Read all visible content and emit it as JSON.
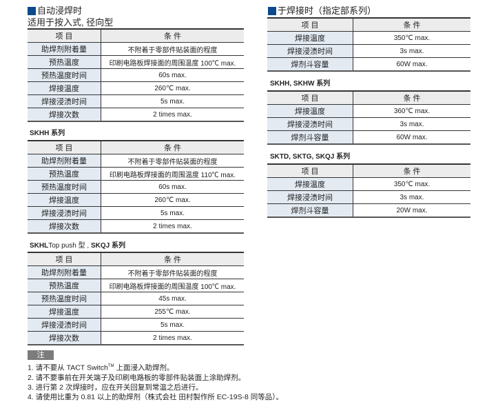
{
  "left": {
    "title": "自动浸焊时",
    "subtitle": "适用于按入式, 径向型",
    "header": [
      "项 目",
      "条 件"
    ],
    "table1": [
      [
        "助焊剂附着量",
        "不附着于零部件贴装面的程度"
      ],
      [
        "预热温度",
        "印刷电路板焊接面的周围温度 100℃ max."
      ],
      [
        "预热温度时间",
        "60s max."
      ],
      [
        "焊接温度",
        "260℃ max."
      ],
      [
        "焊接浸渍时间",
        "5s max."
      ],
      [
        "焊接次数",
        "2 times max."
      ]
    ],
    "label2": "SKHH 系列",
    "table2": [
      [
        "助焊剂附着量",
        "不附着于零部件贴装面的程度"
      ],
      [
        "预热温度",
        "印刷电路板焊接面的周围温度 110℃ max."
      ],
      [
        "预热温度时间",
        "60s max."
      ],
      [
        "焊接温度",
        "260℃ max."
      ],
      [
        "焊接浸渍时间",
        "5s max."
      ],
      [
        "焊接次数",
        "2 times max."
      ]
    ],
    "label3a": "SKHL",
    "label3b": "Top push 型 , ",
    "label3c": "SKQJ  系列",
    "table3": [
      [
        "助焊剂附着量",
        "不附着于零部件贴装面的程度"
      ],
      [
        "预热温度",
        "印刷电路板焊接面的周围温度 100℃ max."
      ],
      [
        "预热温度时间",
        "45s max."
      ],
      [
        "焊接温度",
        "255℃ max."
      ],
      [
        "焊接浸渍时间",
        "5s max."
      ],
      [
        "焊接次数",
        "2 times max."
      ]
    ]
  },
  "notes": {
    "tag": "注",
    "n1a": "1. 请不要从 TACT Switch",
    "n1tm": "TM",
    "n1b": " 上面浸入助焊剂。",
    "n2": "2. 请不要事前在开关端子及印刷电路板的零部件贴装面上涂助焊剂。",
    "n3": "3. 进行第 2 次焊接时，应在开关回复到常温之后进行。",
    "n4": "4. 请使用比重为 0.81 以上的助焊剂（株式会社 田村製作所 EC-19S-8 同等品）。"
  },
  "right": {
    "title": "于焊接时（指定部系列）",
    "table1": [
      [
        "焊接温度",
        "350℃ max."
      ],
      [
        "焊接浸渍时间",
        "3s max."
      ],
      [
        "焊剂斗容量",
        "60W max."
      ]
    ],
    "label2": "SKHH, SKHW 系列",
    "table2": [
      [
        "焊接温度",
        "360℃ max."
      ],
      [
        "焊接浸渍时间",
        "3s max."
      ],
      [
        "焊剂斗容量",
        "60W max."
      ]
    ],
    "label3": "SKTD, SKTG, SKQJ 系列",
    "table3": [
      [
        "焊接温度",
        "350℃ max."
      ],
      [
        "焊接浸渍时间",
        "3s max."
      ],
      [
        "焊剂斗容量",
        "20W max."
      ]
    ]
  },
  "colors": {
    "accent": "#0b4a8c",
    "key_bg": "#e3eaf2",
    "header_bg": "#ececec"
  }
}
